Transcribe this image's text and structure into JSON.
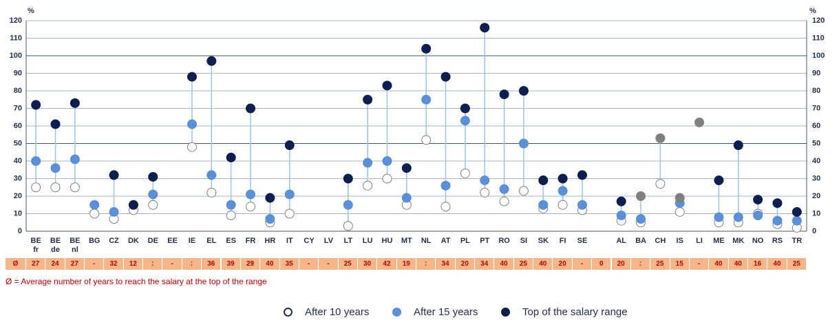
{
  "chart_data": {
    "type": "dot",
    "unit_left": "%",
    "unit_right": "%",
    "categories": [
      "BE\nfr",
      "BE\nde",
      "BE\nnl",
      "BG",
      "CZ",
      "DK",
      "DE",
      "EE",
      "IE",
      "EL",
      "ES",
      "FR",
      "HR",
      "IT",
      "CY",
      "LV",
      "LT",
      "LU",
      "HU",
      "MT",
      "NL",
      "AT",
      "PL",
      "PT",
      "RO",
      "SI",
      "SK",
      "FI",
      "SE",
      null,
      "AL",
      "BA",
      "CH",
      "IS",
      "LI",
      "ME",
      "MK",
      "NO",
      "RS",
      "TR"
    ],
    "series": [
      {
        "name": "After 10 years",
        "color": "#ffffff",
        "stroke": "#7f7f7f",
        "values": [
          25,
          25,
          25,
          10,
          7,
          12,
          15,
          null,
          48,
          22,
          9,
          14,
          5,
          10,
          null,
          null,
          3,
          26,
          30,
          15,
          52,
          14,
          33,
          22,
          17,
          23,
          13,
          15,
          12,
          null,
          6,
          5,
          27,
          11,
          null,
          5,
          5,
          10,
          4,
          2
        ]
      },
      {
        "name": "After 15 years",
        "color": "#5b8fd6",
        "stroke": "#5b8fd6",
        "values": [
          40,
          36,
          41,
          15,
          11,
          null,
          21,
          null,
          61,
          32,
          15,
          21,
          7,
          21,
          null,
          null,
          15,
          39,
          40,
          19,
          75,
          26,
          63,
          29,
          24,
          50,
          15,
          23,
          15,
          null,
          9,
          7,
          null,
          16,
          null,
          8,
          8,
          9,
          6,
          6
        ]
      },
      {
        "name": "Top of the salary range",
        "color": "#0c1f4f",
        "stroke": "#0c1f4f",
        "values": [
          72,
          61,
          73,
          null,
          32,
          15,
          31,
          null,
          88,
          97,
          42,
          70,
          19,
          49,
          null,
          null,
          30,
          75,
          83,
          36,
          104,
          88,
          70,
          116,
          78,
          80,
          29,
          30,
          32,
          null,
          17,
          null,
          null,
          null,
          null,
          29,
          49,
          18,
          16,
          11
        ]
      },
      {
        "color": "#808080",
        "stroke": "#808080",
        "values": [
          null,
          null,
          null,
          null,
          null,
          null,
          null,
          null,
          null,
          null,
          null,
          null,
          null,
          null,
          null,
          null,
          null,
          null,
          null,
          null,
          null,
          null,
          null,
          null,
          null,
          null,
          null,
          null,
          null,
          null,
          null,
          20,
          53,
          19,
          62,
          null,
          null,
          null,
          null,
          null
        ]
      }
    ],
    "average_label": "Ø",
    "average_years": [
      27,
      24,
      27,
      "-",
      32,
      12,
      ":",
      "-",
      ":",
      36,
      39,
      29,
      40,
      35,
      "-",
      "-",
      25,
      30,
      42,
      19,
      ":",
      34,
      20,
      34,
      40,
      25,
      40,
      20,
      "-",
      0,
      20,
      ":",
      25,
      15,
      "-",
      40,
      40,
      16,
      40,
      25
    ],
    "note": "Ø = Average number of years to reach the salary at the top of the range",
    "ylim": [
      0,
      120
    ],
    "yticks": [
      0,
      10,
      20,
      30,
      40,
      50,
      60,
      70,
      80,
      90,
      100,
      110,
      120
    ],
    "grid": true
  }
}
